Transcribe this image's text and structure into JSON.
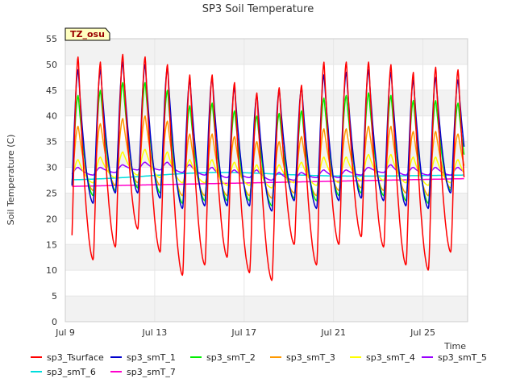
{
  "chart_data": {
    "type": "line",
    "title": "SP3 Soil Temperature",
    "xlabel": "Time",
    "ylabel": "Soil Temperature (C)",
    "badge": "TZ_osu",
    "ylim": [
      0,
      55
    ],
    "yticks": [
      0,
      5,
      10,
      15,
      20,
      25,
      30,
      35,
      40,
      45,
      50,
      55
    ],
    "xlim": [
      "2023-07-09T00:00",
      "2023-07-27T00:00"
    ],
    "xticks": [
      {
        "label": "Jul 9",
        "date": "2023-07-09"
      },
      {
        "label": "Jul 13",
        "date": "2023-07-13"
      },
      {
        "label": "Jul 17",
        "date": "2023-07-17"
      },
      {
        "label": "Jul 21",
        "date": "2023-07-21"
      },
      {
        "label": "Jul 25",
        "date": "2023-07-25"
      }
    ],
    "grid_bands": true,
    "legend_placement": "bottom",
    "days": [
      "2023-07-09",
      "2023-07-10",
      "2023-07-11",
      "2023-07-12",
      "2023-07-13",
      "2023-07-14",
      "2023-07-15",
      "2023-07-16",
      "2023-07-17",
      "2023-07-18",
      "2023-07-19",
      "2023-07-20",
      "2023-07-21",
      "2023-07-22",
      "2023-07-23",
      "2023-07-24",
      "2023-07-25",
      "2023-07-26"
    ],
    "series": [
      {
        "name": "sp3_Tsurface",
        "color": "#ff0000",
        "daily_max": [
          51.5,
          50.5,
          52,
          51.5,
          50,
          48,
          48,
          46.5,
          44.5,
          45.5,
          46,
          50.5,
          50.5,
          50.5,
          50,
          48.5,
          49.5,
          49
        ],
        "daily_min": [
          11.5,
          12,
          14.5,
          18,
          13.5,
          9,
          11,
          12.5,
          9.5,
          8,
          15,
          11,
          15,
          16.5,
          14.5,
          11,
          10,
          13.5
        ]
      },
      {
        "name": "sp3_smT_1",
        "color": "#0000cc",
        "daily_max": [
          49,
          49,
          50.5,
          50,
          49.5,
          47,
          47.5,
          45.5,
          44,
          45,
          45.5,
          48,
          48.5,
          49,
          48.5,
          47,
          47.5,
          47
        ],
        "daily_min": [
          23,
          23,
          25,
          25,
          24,
          22,
          22.5,
          22.5,
          22.5,
          21.5,
          23.5,
          22,
          23.5,
          24,
          23.5,
          22.5,
          22,
          25
        ]
      },
      {
        "name": "sp3_smT_2",
        "color": "#00ee00",
        "daily_max": [
          44,
          45,
          46.5,
          46.5,
          45,
          42,
          42.5,
          41,
          40,
          40.5,
          41,
          43.5,
          44,
          44.5,
          44,
          43,
          43,
          42.5
        ],
        "daily_min": [
          24,
          24.5,
          25.5,
          26,
          25,
          23,
          23.5,
          23.5,
          23.5,
          22.5,
          24,
          23.5,
          24.5,
          25,
          24.5,
          23.5,
          23,
          25.5
        ]
      },
      {
        "name": "sp3_smT_3",
        "color": "#ff9900",
        "daily_max": [
          38,
          38.5,
          39.5,
          40,
          39,
          36.5,
          36.5,
          36,
          35,
          35,
          36,
          37.5,
          37.5,
          38,
          38,
          37,
          37,
          36.5
        ],
        "daily_min": [
          25,
          25.5,
          26.5,
          27,
          26.5,
          24.5,
          24.5,
          24.5,
          24.5,
          24,
          25,
          24.5,
          25.5,
          26,
          25.5,
          25,
          24.5,
          26
        ]
      },
      {
        "name": "sp3_smT_4",
        "color": "#ffff00",
        "daily_max": [
          31.5,
          32,
          33,
          33.5,
          33,
          31.5,
          31.5,
          31,
          30.5,
          30.5,
          31,
          32,
          32,
          32.5,
          32.5,
          32,
          32,
          31.5
        ],
        "daily_min": [
          27,
          27,
          28,
          28.5,
          28,
          27,
          27,
          26.5,
          26.5,
          26,
          27,
          26.5,
          27,
          27.5,
          27.5,
          27,
          26.5,
          27
        ]
      },
      {
        "name": "sp3_smT_5",
        "color": "#9900ff",
        "daily_max": [
          30,
          30,
          30.5,
          31,
          31,
          30.5,
          30,
          29.5,
          29.5,
          29,
          29,
          29.5,
          29.5,
          30,
          30.5,
          30,
          30,
          30
        ],
        "daily_min": [
          28.5,
          28.5,
          29,
          29.5,
          29.5,
          29,
          28.5,
          28,
          28,
          27.5,
          27.5,
          28,
          28,
          28.5,
          29,
          28.5,
          28.5,
          28.5
        ]
      },
      {
        "name": "sp3_smT_6",
        "color": "#00dddd",
        "start": 27.5,
        "end": 28.5,
        "peak_day": 6,
        "peak": 29
      },
      {
        "name": "sp3_smT_7",
        "color": "#ff00cc",
        "start": 26.3,
        "end": 27.8
      }
    ]
  }
}
